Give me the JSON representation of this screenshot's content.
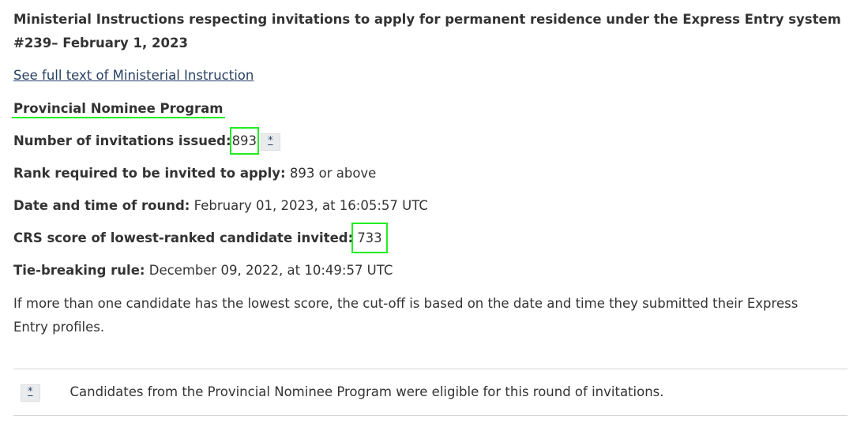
{
  "title_line1": "Ministerial Instructions respecting invitations to apply for permanent residence under the Express Entry system",
  "title_line2": "#239– February 1, 2023",
  "full_text_link": "See full text of Ministerial Instruction",
  "program": "Provincial Nominee Program",
  "invitations": {
    "label": "Number of invitations issued:",
    "value": "893",
    "footnote_marker": "*"
  },
  "rank": {
    "label": "Rank required to be invited to apply:",
    "value": "893 or above"
  },
  "datetime": {
    "label": "Date and time of round:",
    "value": "February 01, 2023, at 16:05:57 UTC"
  },
  "crs": {
    "label": "CRS score of lowest-ranked candidate invited:",
    "value": "733"
  },
  "tie": {
    "label": "Tie-breaking rule:",
    "value": "December 09, 2022, at 10:49:57 UTC"
  },
  "note_line1": "If more than one candidate has the lowest score, the cut-off is based on the date and time they submitted their Express",
  "note_line2": "Entry profiles.",
  "footnote": {
    "marker": "*",
    "text": "Candidates from the Provincial Nominee Program were eligible for this round of invitations."
  },
  "colors": {
    "highlight": "#22ee22",
    "link": "#284162"
  }
}
